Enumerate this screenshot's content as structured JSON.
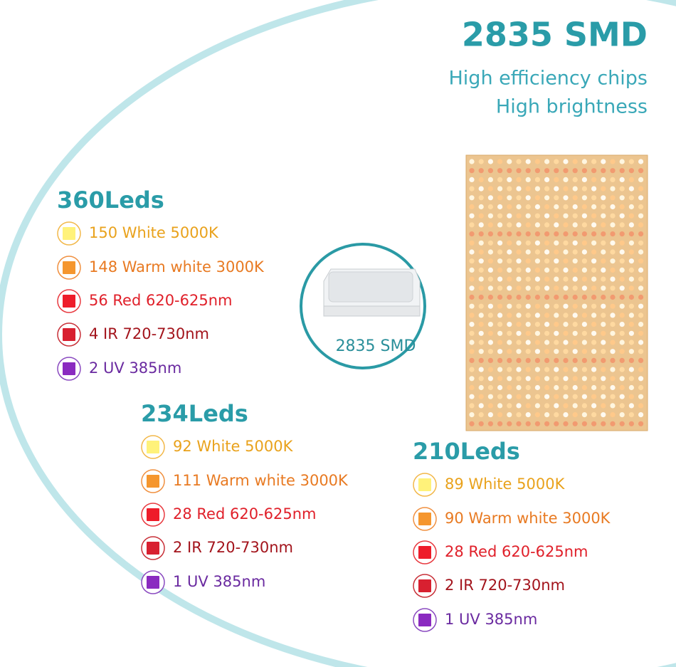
{
  "header": {
    "title": "2835 SMD",
    "subtitle_lines": [
      "High efficiency chips",
      "High brightness"
    ]
  },
  "chip_label": "2835 SMD",
  "groups": [
    {
      "title": "360Leds",
      "items": [
        "150 White 5000K",
        "148 Warm white 3000K",
        "56 Red 620-625nm",
        "4 IR 720-730nm",
        "2 UV 385nm"
      ]
    },
    {
      "title": "234Leds",
      "items": [
        "92 White 5000K",
        "111 Warm white 3000K",
        "28 Red 620-625nm",
        "2 IR 720-730nm",
        "1 UV 385nm"
      ]
    },
    {
      "title": "210Leds",
      "items": [
        "89 White 5000K",
        "90 Warm white 3000K",
        "28 Red 620-625nm",
        "2 IR 720-730nm",
        "1 UV 385nm"
      ]
    }
  ]
}
